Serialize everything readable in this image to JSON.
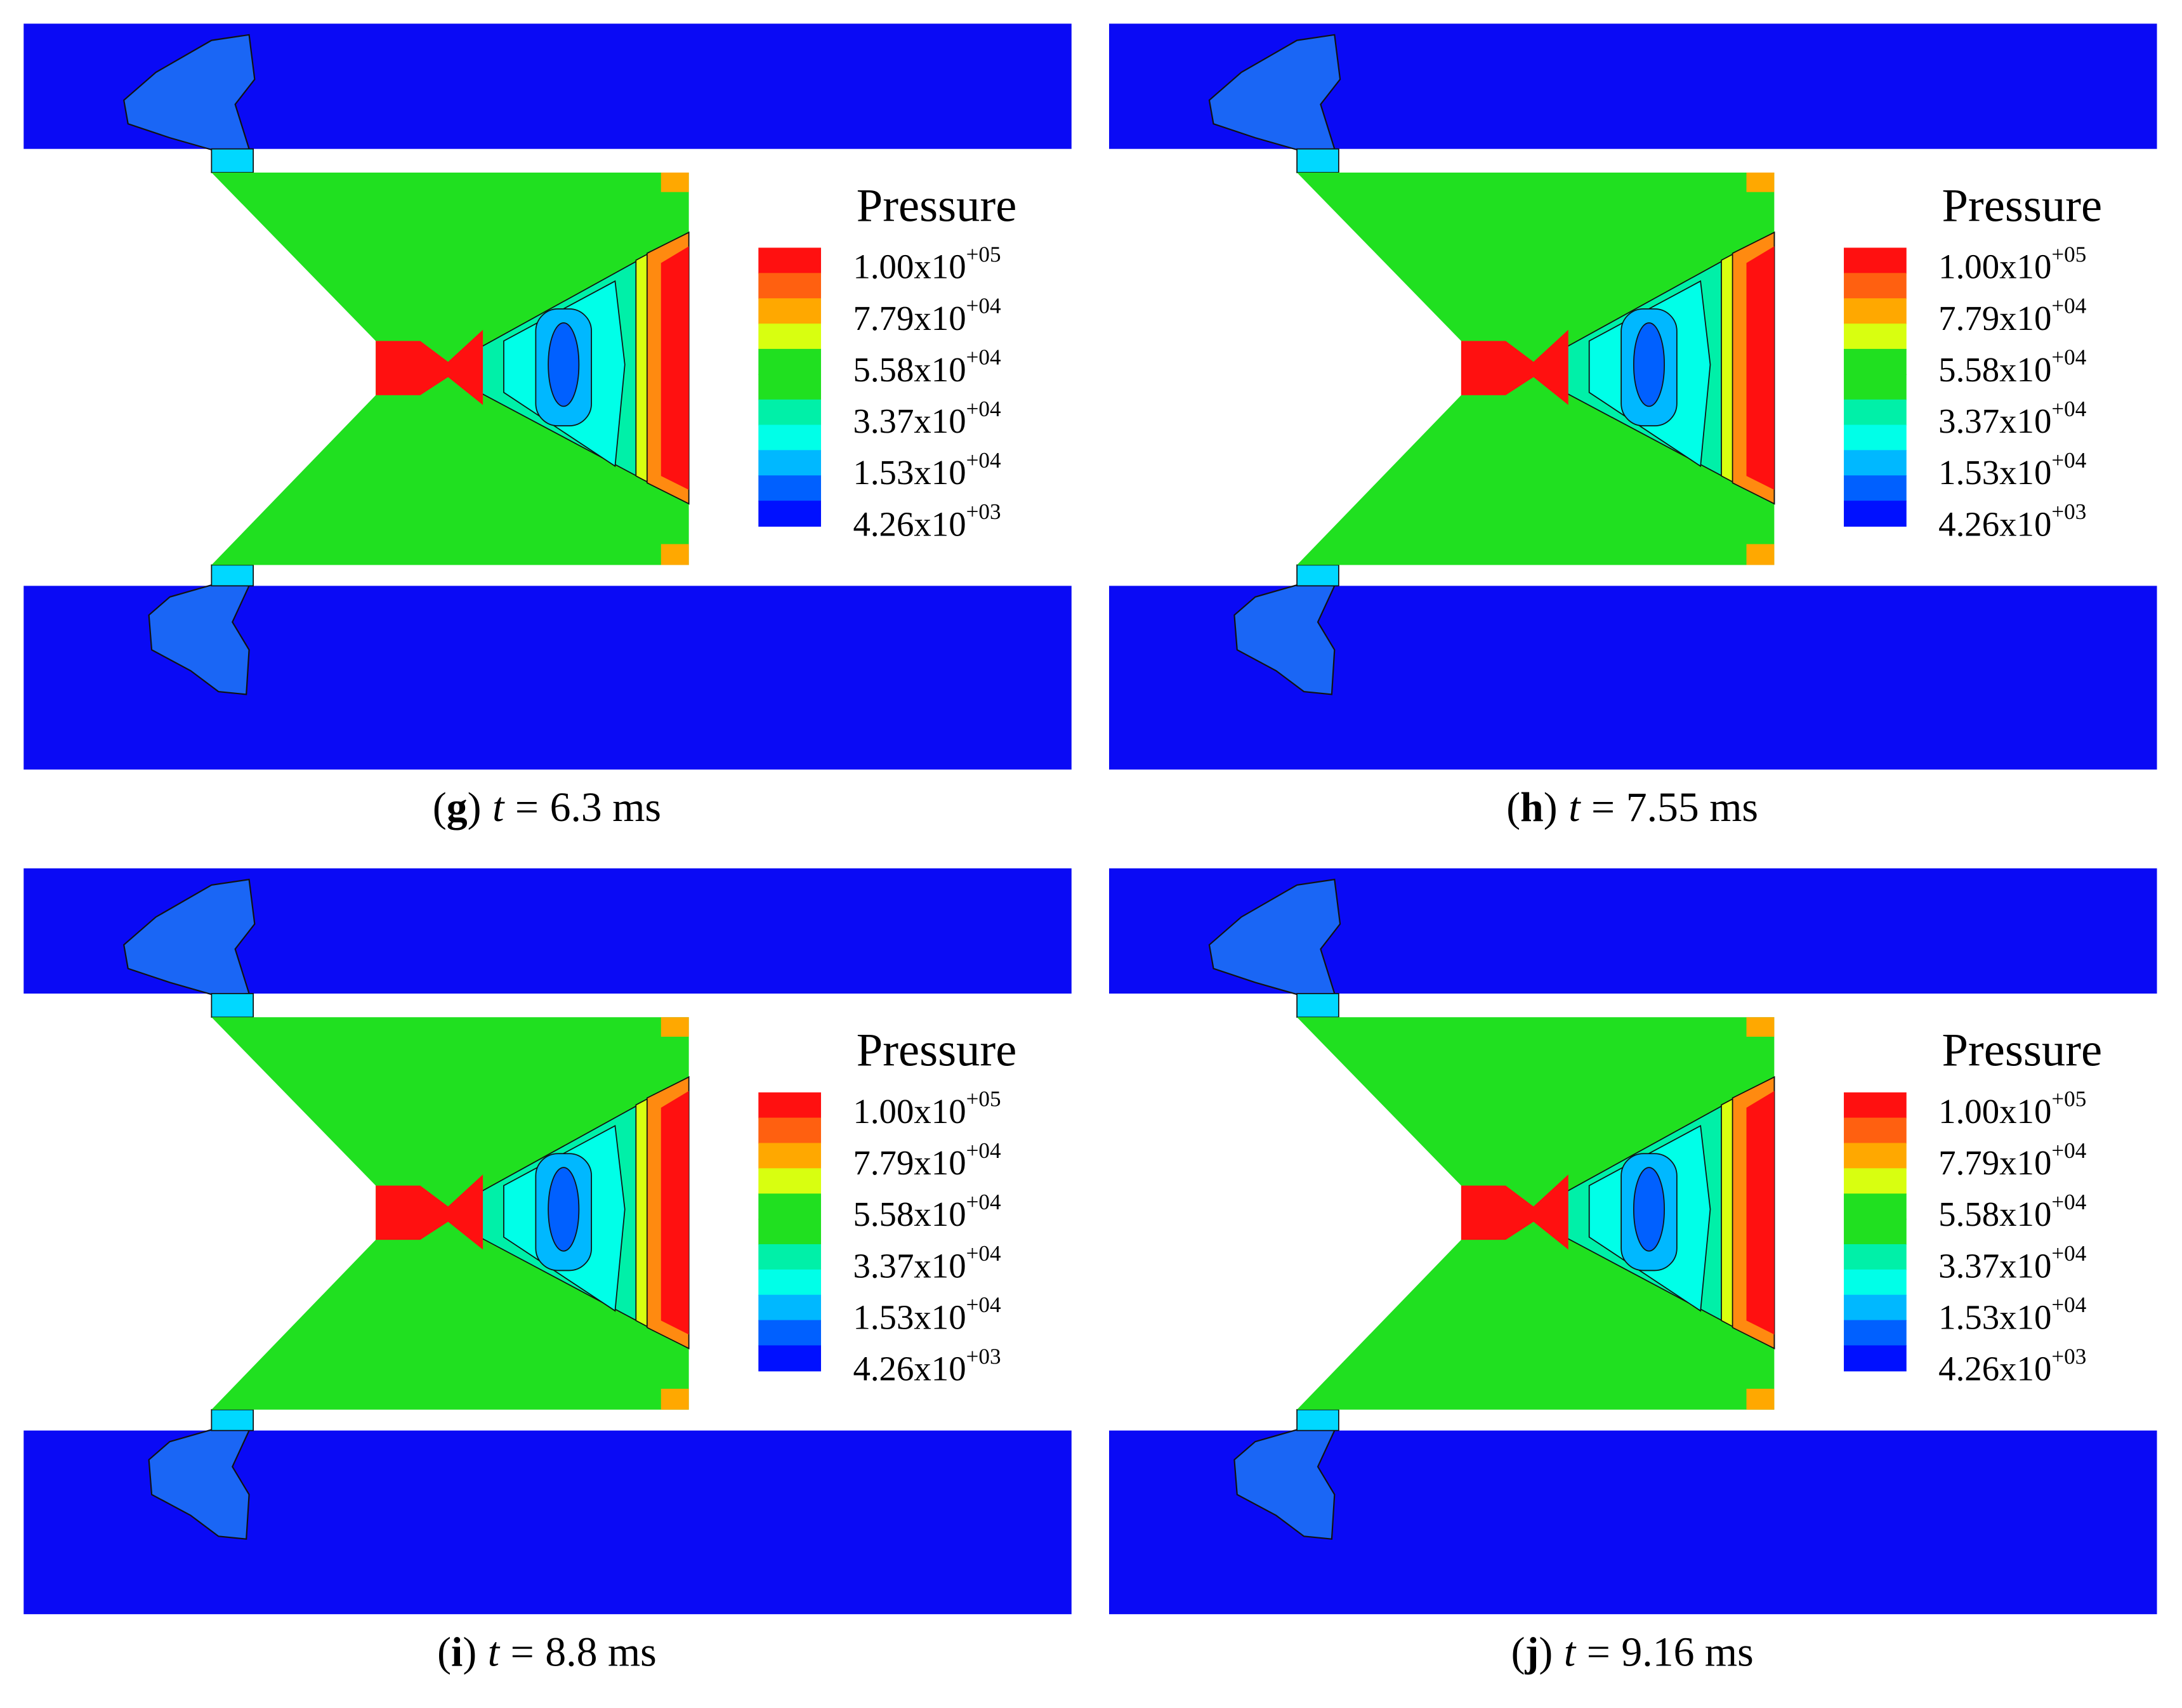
{
  "legend": {
    "title": "Pressure",
    "colors": [
      "#ff1010",
      "#ff6010",
      "#ffa800",
      "#d8ff10",
      "#20e020",
      "#20e020",
      "#00f0a8",
      "#00ffe8",
      "#00b8ff",
      "#0060ff",
      "#0010ff"
    ],
    "labels": [
      {
        "mantissa": "1.00x10",
        "exponent": "+05"
      },
      {
        "mantissa": "7.79x10",
        "exponent": "+04"
      },
      {
        "mantissa": "5.58x10",
        "exponent": "+04"
      },
      {
        "mantissa": "3.37x10",
        "exponent": "+04"
      },
      {
        "mantissa": "1.53x10",
        "exponent": "+04"
      },
      {
        "mantissa": "4.26x10",
        "exponent": "+03"
      }
    ]
  },
  "caption": {
    "open": "(",
    "close": ")",
    "symbol": "t",
    "equals": "="
  },
  "panels": [
    {
      "letter": "g",
      "time": "6.3 ms"
    },
    {
      "letter": "h",
      "time": "7.55 ms"
    },
    {
      "letter": "i",
      "time": "8.8 ms"
    },
    {
      "letter": "j",
      "time": "9.16 ms"
    }
  ]
}
